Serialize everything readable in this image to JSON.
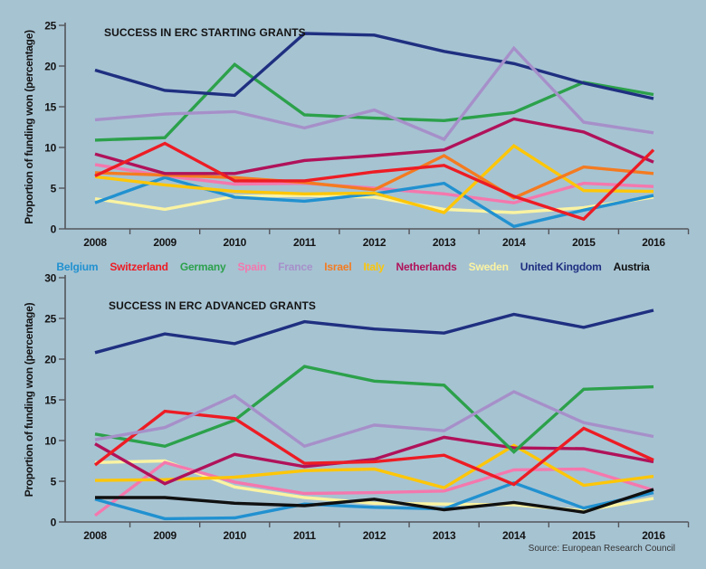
{
  "page": {
    "background": "#a6c3d2",
    "source_note": "Source: European Research Council"
  },
  "legend": {
    "position": "between-charts",
    "items": [
      {
        "label": "Belgium",
        "color": "#2191d0"
      },
      {
        "label": "Switzerland",
        "color": "#ed1c24"
      },
      {
        "label": "Germany",
        "color": "#2ca14b"
      },
      {
        "label": "Spain",
        "color": "#f478ad"
      },
      {
        "label": "France",
        "color": "#a690c9"
      },
      {
        "label": "Israel",
        "color": "#f47b20"
      },
      {
        "label": "Italy",
        "color": "#fdc608"
      },
      {
        "label": "Netherlands",
        "color": "#b0125a"
      },
      {
        "label": "Sweden",
        "color": "#faf3a2"
      },
      {
        "label": "United Kingdom",
        "color": "#1f2f80"
      },
      {
        "label": "Austria",
        "color": "#101010"
      }
    ]
  },
  "chart_data": [
    {
      "type": "line",
      "title": "SUCCESS IN ERC STARTING GRANTS",
      "xlabel": "",
      "ylabel": "Proportion of funding won (percentage)",
      "categories": [
        "2008",
        "2009",
        "2010",
        "2011",
        "2012",
        "2013",
        "2014",
        "2015",
        "2016"
      ],
      "ylim": [
        0,
        25
      ],
      "y_ticks": [
        0,
        5,
        10,
        15,
        20,
        25
      ],
      "grid": false,
      "series": [
        {
          "name": "Sweden",
          "color": "#faf3a2",
          "values": [
            3.7,
            2.4,
            4.0,
            4.1,
            3.9,
            2.4,
            2.0,
            2.6,
            3.9
          ]
        },
        {
          "name": "Spain",
          "color": "#f478ad",
          "values": [
            7.9,
            6.5,
            5.5,
            5.6,
            5.0,
            4.3,
            3.2,
            5.6,
            5.2
          ]
        },
        {
          "name": "Belgium",
          "color": "#2191d0",
          "values": [
            3.2,
            6.3,
            3.9,
            3.4,
            4.3,
            5.6,
            0.3,
            2.3,
            4.1
          ]
        },
        {
          "name": "Italy",
          "color": "#fdc608",
          "values": [
            6.4,
            5.4,
            4.6,
            4.3,
            4.4,
            2.0,
            10.2,
            4.7,
            4.6
          ]
        },
        {
          "name": "Israel",
          "color": "#f47b20",
          "values": [
            6.9,
            6.6,
            6.3,
            5.7,
            4.8,
            9.0,
            3.8,
            7.6,
            6.8
          ]
        },
        {
          "name": "Netherlands",
          "color": "#b0125a",
          "values": [
            9.2,
            6.8,
            6.8,
            8.4,
            9.0,
            9.7,
            13.5,
            11.9,
            8.2
          ]
        },
        {
          "name": "Germany",
          "color": "#2ca14b",
          "values": [
            10.9,
            11.2,
            20.2,
            14.0,
            13.6,
            13.3,
            14.3,
            18.0,
            16.5
          ]
        },
        {
          "name": "Switzerland",
          "color": "#ed1c24",
          "values": [
            6.5,
            10.5,
            5.9,
            5.9,
            7.0,
            7.8,
            4.0,
            1.2,
            9.7
          ]
        },
        {
          "name": "United Kingdom",
          "color": "#1f2f80",
          "values": [
            19.5,
            17.0,
            16.4,
            24.0,
            23.8,
            21.8,
            20.3,
            17.9,
            16.0
          ]
        },
        {
          "name": "France",
          "color": "#a690c9",
          "values": [
            13.4,
            14.1,
            14.4,
            12.4,
            14.6,
            11.0,
            22.2,
            13.1,
            11.8
          ]
        }
      ]
    },
    {
      "type": "line",
      "title": "SUCCESS IN ERC ADVANCED GRANTS",
      "xlabel": "",
      "ylabel": "Proportion of funding won (percentage)",
      "categories": [
        "2008",
        "2009",
        "2010",
        "2011",
        "2012",
        "2013",
        "2014",
        "2015",
        "2016"
      ],
      "ylim": [
        0,
        30
      ],
      "y_ticks": [
        0,
        5,
        10,
        15,
        20,
        25,
        30
      ],
      "grid": false,
      "series": [
        {
          "name": "Sweden",
          "color": "#faf3a2",
          "values": [
            7.3,
            7.5,
            4.3,
            3.0,
            2.3,
            2.2,
            2.1,
            1.4,
            2.9
          ]
        },
        {
          "name": "Spain",
          "color": "#f478ad",
          "values": [
            0.8,
            7.3,
            4.9,
            3.5,
            3.6,
            3.8,
            6.4,
            6.5,
            3.9
          ]
        },
        {
          "name": "Belgium",
          "color": "#2191d0",
          "values": [
            2.8,
            0.4,
            0.5,
            2.2,
            1.8,
            1.6,
            4.8,
            1.7,
            3.6
          ]
        },
        {
          "name": "Italy",
          "color": "#fdc608",
          "values": [
            5.1,
            5.2,
            5.5,
            6.3,
            6.5,
            4.2,
            9.4,
            4.5,
            5.6
          ]
        },
        {
          "name": "Netherlands",
          "color": "#b0125a",
          "values": [
            9.6,
            4.7,
            8.3,
            6.8,
            7.7,
            10.4,
            9.1,
            9.0,
            7.4
          ]
        },
        {
          "name": "Germany",
          "color": "#2ca14b",
          "values": [
            10.8,
            9.3,
            12.5,
            19.1,
            17.3,
            16.8,
            8.6,
            16.3,
            16.6
          ]
        },
        {
          "name": "Switzerland",
          "color": "#ed1c24",
          "values": [
            7.0,
            13.6,
            12.7,
            7.2,
            7.4,
            8.2,
            4.6,
            11.5,
            7.6
          ]
        },
        {
          "name": "United Kingdom",
          "color": "#1f2f80",
          "values": [
            20.8,
            23.1,
            21.9,
            24.6,
            23.7,
            23.2,
            25.5,
            23.9,
            26.0
          ]
        },
        {
          "name": "France",
          "color": "#a690c9",
          "values": [
            10.1,
            11.6,
            15.5,
            9.3,
            11.9,
            11.2,
            16.0,
            12.2,
            10.5
          ]
        },
        {
          "name": "Austria",
          "color": "#101010",
          "values": [
            3.0,
            3.0,
            2.3,
            2.0,
            2.8,
            1.5,
            2.4,
            1.2,
            4.0
          ]
        }
      ]
    }
  ]
}
